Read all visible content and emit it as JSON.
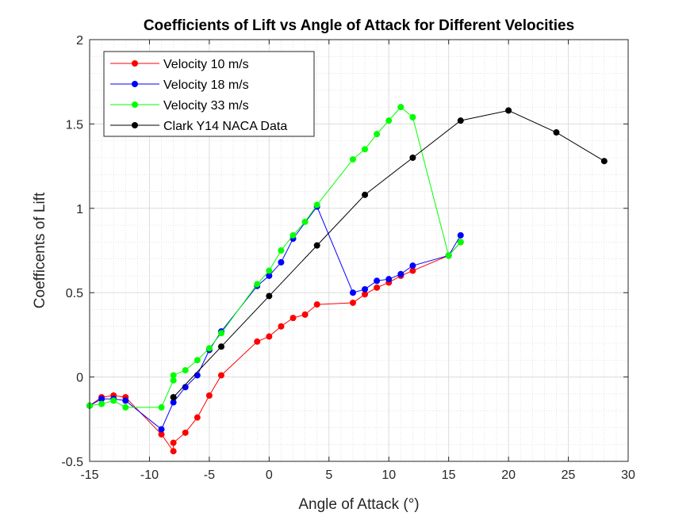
{
  "chart_data": {
    "type": "line",
    "title": "Coefficients of Lift vs Angle of Attack for Different Velocities",
    "xlabel": "Angle of Attack (°)",
    "ylabel": "Coefficents of Lift",
    "xlim": [
      -15,
      30
    ],
    "ylim": [
      -0.5,
      2
    ],
    "xticks": [
      -15,
      -10,
      -5,
      0,
      5,
      10,
      15,
      20,
      25,
      30
    ],
    "yticks": [
      -0.5,
      0,
      0.5,
      1,
      1.5,
      2
    ],
    "grid": true,
    "minor_grid": true,
    "legend_position": "top-left",
    "series": [
      {
        "name": "Velocity 10 m/s",
        "color": "#ff0000",
        "points": [
          [
            -15,
            -0.17
          ],
          [
            -14,
            -0.12
          ],
          [
            -13,
            -0.11
          ],
          [
            -12,
            -0.12
          ],
          [
            -9,
            -0.34
          ],
          [
            -8,
            -0.44
          ],
          [
            -8,
            -0.39
          ],
          [
            -7,
            -0.33
          ],
          [
            -6,
            -0.24
          ],
          [
            -5,
            -0.11
          ],
          [
            -4,
            0.01
          ],
          [
            -1,
            0.21
          ],
          [
            0,
            0.24
          ],
          [
            1,
            0.3
          ],
          [
            2,
            0.35
          ],
          [
            3,
            0.37
          ],
          [
            4,
            0.43
          ],
          [
            7,
            0.44
          ],
          [
            8,
            0.49
          ],
          [
            9,
            0.53
          ],
          [
            10,
            0.56
          ],
          [
            11,
            0.6
          ],
          [
            12,
            0.63
          ],
          [
            15,
            0.72
          ],
          [
            16,
            0.8
          ]
        ]
      },
      {
        "name": "Velocity 18 m/s",
        "color": "#0000ff",
        "points": [
          [
            -15,
            -0.17
          ],
          [
            -14,
            -0.13
          ],
          [
            -13,
            -0.13
          ],
          [
            -12,
            -0.14
          ],
          [
            -9,
            -0.31
          ],
          [
            -8,
            -0.15
          ],
          [
            -7,
            -0.06
          ],
          [
            -6,
            0.01
          ],
          [
            -5,
            0.16
          ],
          [
            -4,
            0.27
          ],
          [
            -1,
            0.54
          ],
          [
            0,
            0.6
          ],
          [
            1,
            0.68
          ],
          [
            2,
            0.82
          ],
          [
            4,
            1.01
          ],
          [
            7,
            0.5
          ],
          [
            8,
            0.52
          ],
          [
            9,
            0.57
          ],
          [
            10,
            0.58
          ],
          [
            11,
            0.61
          ],
          [
            12,
            0.66
          ],
          [
            15,
            0.72
          ],
          [
            16,
            0.84
          ]
        ]
      },
      {
        "name": "Velocity 33 m/s",
        "color": "#00ff00",
        "points": [
          [
            -15,
            -0.17
          ],
          [
            -14,
            -0.16
          ],
          [
            -13,
            -0.14
          ],
          [
            -12,
            -0.18
          ],
          [
            -9,
            -0.18
          ],
          [
            -8,
            -0.02
          ],
          [
            -8,
            0.01
          ],
          [
            -7,
            0.04
          ],
          [
            -6,
            0.1
          ],
          [
            -5,
            0.17
          ],
          [
            -4,
            0.26
          ],
          [
            -1,
            0.55
          ],
          [
            0,
            0.63
          ],
          [
            1,
            0.75
          ],
          [
            2,
            0.84
          ],
          [
            3,
            0.92
          ],
          [
            4,
            1.02
          ],
          [
            7,
            1.29
          ],
          [
            8,
            1.35
          ],
          [
            9,
            1.44
          ],
          [
            10,
            1.52
          ],
          [
            11,
            1.6
          ],
          [
            12,
            1.54
          ],
          [
            15,
            0.72
          ],
          [
            16,
            0.8
          ]
        ]
      },
      {
        "name": "Clark Y14 NACA Data",
        "color": "#000000",
        "points": [
          [
            -8,
            -0.12
          ],
          [
            -4,
            0.18
          ],
          [
            0,
            0.48
          ],
          [
            4,
            0.78
          ],
          [
            8,
            1.08
          ],
          [
            12,
            1.3
          ],
          [
            16,
            1.52
          ],
          [
            20,
            1.58
          ],
          [
            24,
            1.45
          ],
          [
            28,
            1.28
          ]
        ]
      }
    ]
  }
}
